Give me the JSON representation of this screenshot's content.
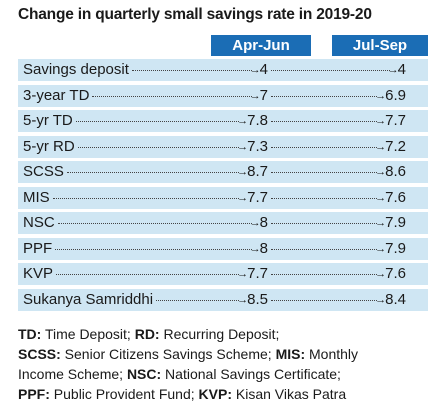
{
  "title": "Change in quarterly small savings rate in 2019-20",
  "columns": {
    "apr_jun": "Apr-Jun",
    "jul_sep": "Jul-Sep"
  },
  "rows": [
    {
      "label": "Savings deposit",
      "apr_jun": "4",
      "jul_sep": "4"
    },
    {
      "label": "3-year TD",
      "apr_jun": "7",
      "jul_sep": "6.9"
    },
    {
      "label": "5-yr TD",
      "apr_jun": "7.8",
      "jul_sep": "7.7"
    },
    {
      "label": "5-yr RD",
      "apr_jun": "7.3",
      "jul_sep": "7.2"
    },
    {
      "label": "SCSS",
      "apr_jun": "8.7",
      "jul_sep": "8.6"
    },
    {
      "label": "MIS",
      "apr_jun": "7.7",
      "jul_sep": "7.6"
    },
    {
      "label": "NSC",
      "apr_jun": "8",
      "jul_sep": "7.9"
    },
    {
      "label": "PPF",
      "apr_jun": "8",
      "jul_sep": "7.9"
    },
    {
      "label": "KVP",
      "apr_jun": "7.7",
      "jul_sep": "7.6"
    },
    {
      "label": "Sukanya Samriddhi",
      "apr_jun": "8.5",
      "jul_sep": "8.4"
    }
  ],
  "legend": {
    "line1": [
      {
        "abbr": "TD:",
        "text": " Time Deposit; "
      },
      {
        "abbr": "RD:",
        "text": " Recurring Deposit;"
      }
    ],
    "line2": [
      {
        "abbr": "SCSS:",
        "text": " Senior Citizens Savings Scheme; "
      },
      {
        "abbr": "MIS:",
        "text": " Monthly"
      }
    ],
    "line3": [
      {
        "abbr": "",
        "text": "Income Scheme; "
      },
      {
        "abbr": "NSC:",
        "text": " National Savings Certificate;"
      }
    ],
    "line4": [
      {
        "abbr": "PPF:",
        "text": " Public Provident Fund; "
      },
      {
        "abbr": "KVP:",
        "text": " Kisan Vikas Patra"
      }
    ]
  }
}
